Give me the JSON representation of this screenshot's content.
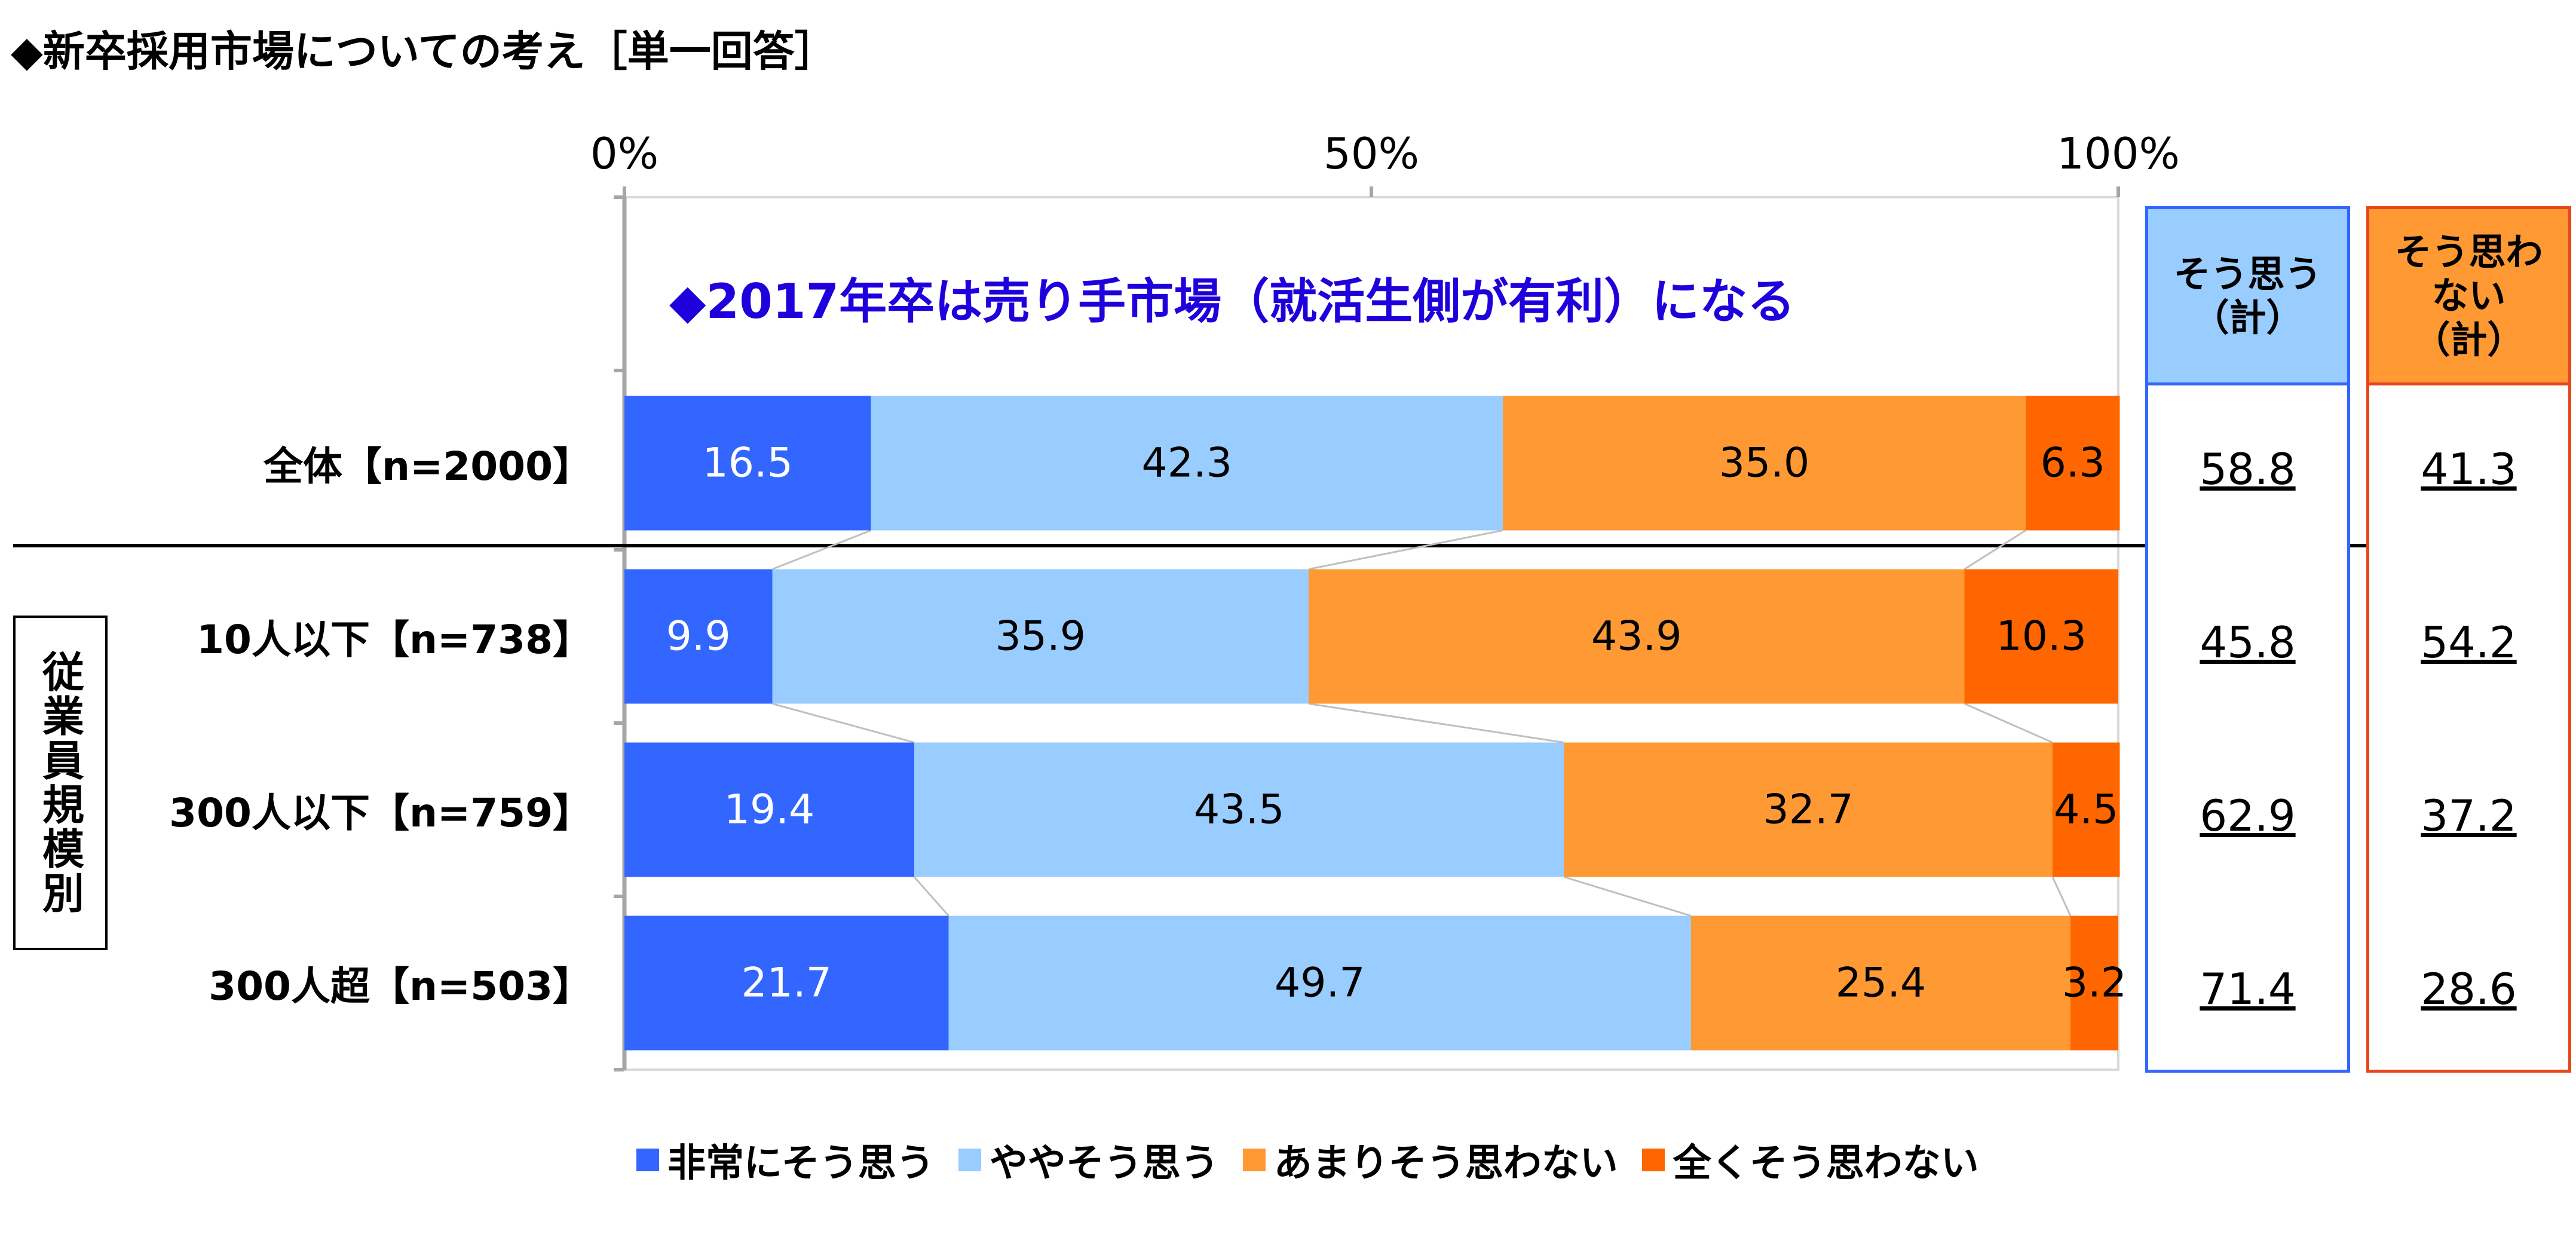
{
  "chart_data": {
    "type": "bar",
    "orientation": "horizontal",
    "stacked": true,
    "title": "◆新卒採用市場についての考え［単一回答］",
    "subtitle": "◆2017年卒は売り手市場（就活生側が有利）になる",
    "categories": [
      "全体【n=2000】",
      "10人以下【n=738】",
      "300人以下【n=759】",
      "300人超【n=503】"
    ],
    "group_label": "従業員規模別",
    "series": [
      {
        "name": "非常にそう思う",
        "color": "#3366ff",
        "values": [
          16.5,
          9.9,
          19.4,
          21.7
        ]
      },
      {
        "name": "ややそう思う",
        "color": "#99ccff",
        "values": [
          42.3,
          35.9,
          43.5,
          49.7
        ]
      },
      {
        "name": "あまりそう思わない",
        "color": "#ff9933",
        "values": [
          35.0,
          43.9,
          32.7,
          25.4
        ]
      },
      {
        "name": "全くそう思わない",
        "color": "#ff6600",
        "values": [
          6.3,
          10.3,
          4.5,
          3.2
        ]
      }
    ],
    "x_ticks": [
      "0%",
      "50%",
      "100%"
    ],
    "xlim": [
      0,
      100
    ],
    "summary_columns": [
      {
        "label_lines": [
          "そう思う",
          "（計）"
        ],
        "values": [
          "58.8",
          "45.8",
          "62.9",
          "71.4"
        ],
        "header_color": "#99ccff",
        "border_color": "#3366ff"
      },
      {
        "label_lines": [
          "そう思わ",
          "ない",
          "（計）"
        ],
        "values": [
          "41.3",
          "54.2",
          "37.2",
          "28.6"
        ],
        "header_color": "#ff9933",
        "border_color": "#e8461c"
      }
    ],
    "legend_position": "bottom"
  }
}
